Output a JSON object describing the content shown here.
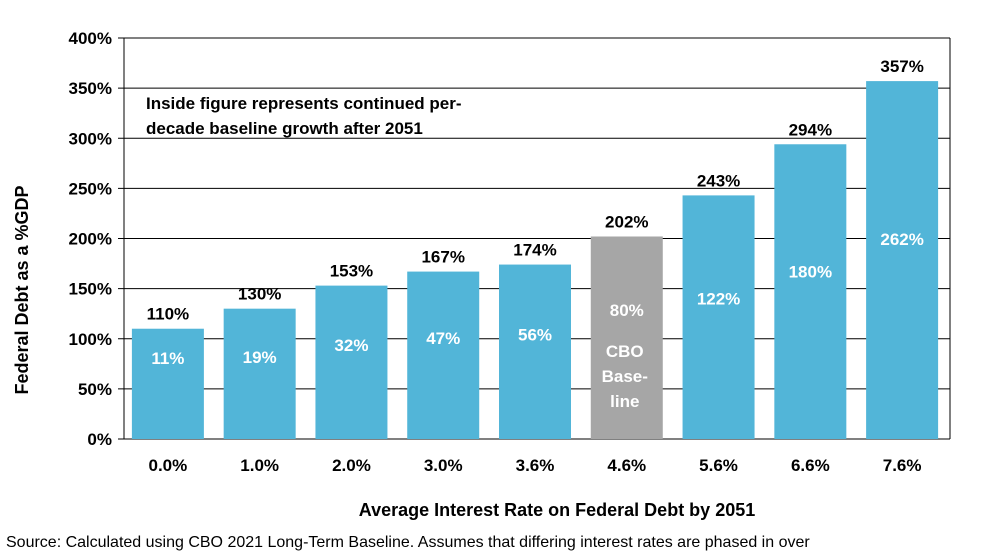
{
  "chart_data": {
    "type": "bar",
    "ylabel": "Federal Debt as a %GDP",
    "xlabel": "Average Interest Rate on Federal Debt by 2051",
    "ylim": [
      0,
      400
    ],
    "y_ticks": [
      "0%",
      "50%",
      "100%",
      "150%",
      "200%",
      "250%",
      "300%",
      "350%",
      "400%"
    ],
    "grid": true,
    "categories": [
      "0.0%",
      "1.0%",
      "2.0%",
      "3.0%",
      "3.6%",
      "4.6%",
      "5.6%",
      "6.6%",
      "7.6%"
    ],
    "values": [
      110,
      130,
      153,
      167,
      174,
      202,
      243,
      294,
      357
    ],
    "value_labels": [
      "110%",
      "130%",
      "153%",
      "167%",
      "174%",
      "202%",
      "243%",
      "294%",
      "357%"
    ],
    "inside_labels": [
      "11%",
      "19%",
      "32%",
      "47%",
      "56%",
      "80%",
      "122%",
      "180%",
      "262%"
    ],
    "baseline_index": 5,
    "baseline_label": [
      "CBO",
      "Base-",
      "line"
    ],
    "annotation": [
      "Inside figure represents continued per-",
      "decade baseline growth after 2051"
    ],
    "colors": {
      "bar": "#52b5d8",
      "baseline_bar": "#a6a6a6",
      "grid": "#000000"
    }
  },
  "source_note": "Source: Calculated using CBO 2021 Long-Term Baseline. Assumes that differing interest rates are phased in over"
}
